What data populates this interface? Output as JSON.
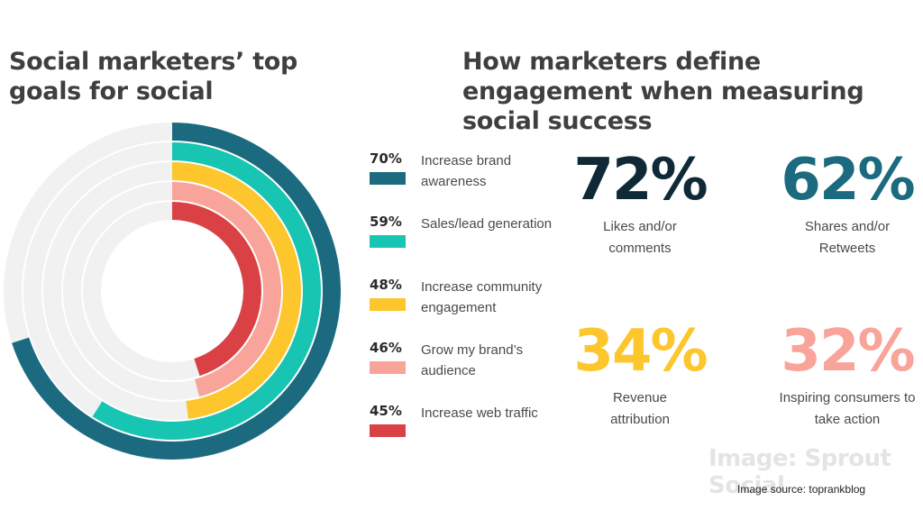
{
  "left_title": "Social marketers’ top goals for social",
  "right_title": "How marketers define engagement when measuring social success",
  "chart_data": [
    {
      "type": "radial-bar",
      "title": "Social marketers’ top goals for social",
      "max": 100,
      "series": [
        {
          "pct_label": "70%",
          "label": "Increase brand awareness",
          "value": 70,
          "color": "#1b6a80"
        },
        {
          "pct_label": "59%",
          "label": "Sales/lead generation",
          "value": 59,
          "color": "#17c5b2"
        },
        {
          "pct_label": "48%",
          "label": "Increase community engagement",
          "value": 48,
          "color": "#fcc62c"
        },
        {
          "pct_label": "46%",
          "label": "Grow my brand’s audience",
          "value": 46,
          "color": "#f9a49a"
        },
        {
          "pct_label": "45%",
          "label": "Increase web traffic",
          "value": 45,
          "color": "#d94144"
        }
      ],
      "track_color": "#f1f1f1"
    },
    {
      "type": "table",
      "title": "How marketers define engagement when measuring social success",
      "items": [
        {
          "value": "72%",
          "label": "Likes and/or comments",
          "color": "#0f2a36"
        },
        {
          "value": "62%",
          "label": "Shares and/or Retweets",
          "color": "#1b6a80"
        },
        {
          "value": "34%",
          "label": "Revenue attribution",
          "color": "#fcc62c"
        },
        {
          "value": "32%",
          "label": "Inspiring consumers to take action",
          "color": "#f9a49a"
        }
      ]
    }
  ],
  "watermark": "Image: Sprout Social",
  "source": "Image source: toprankblog"
}
